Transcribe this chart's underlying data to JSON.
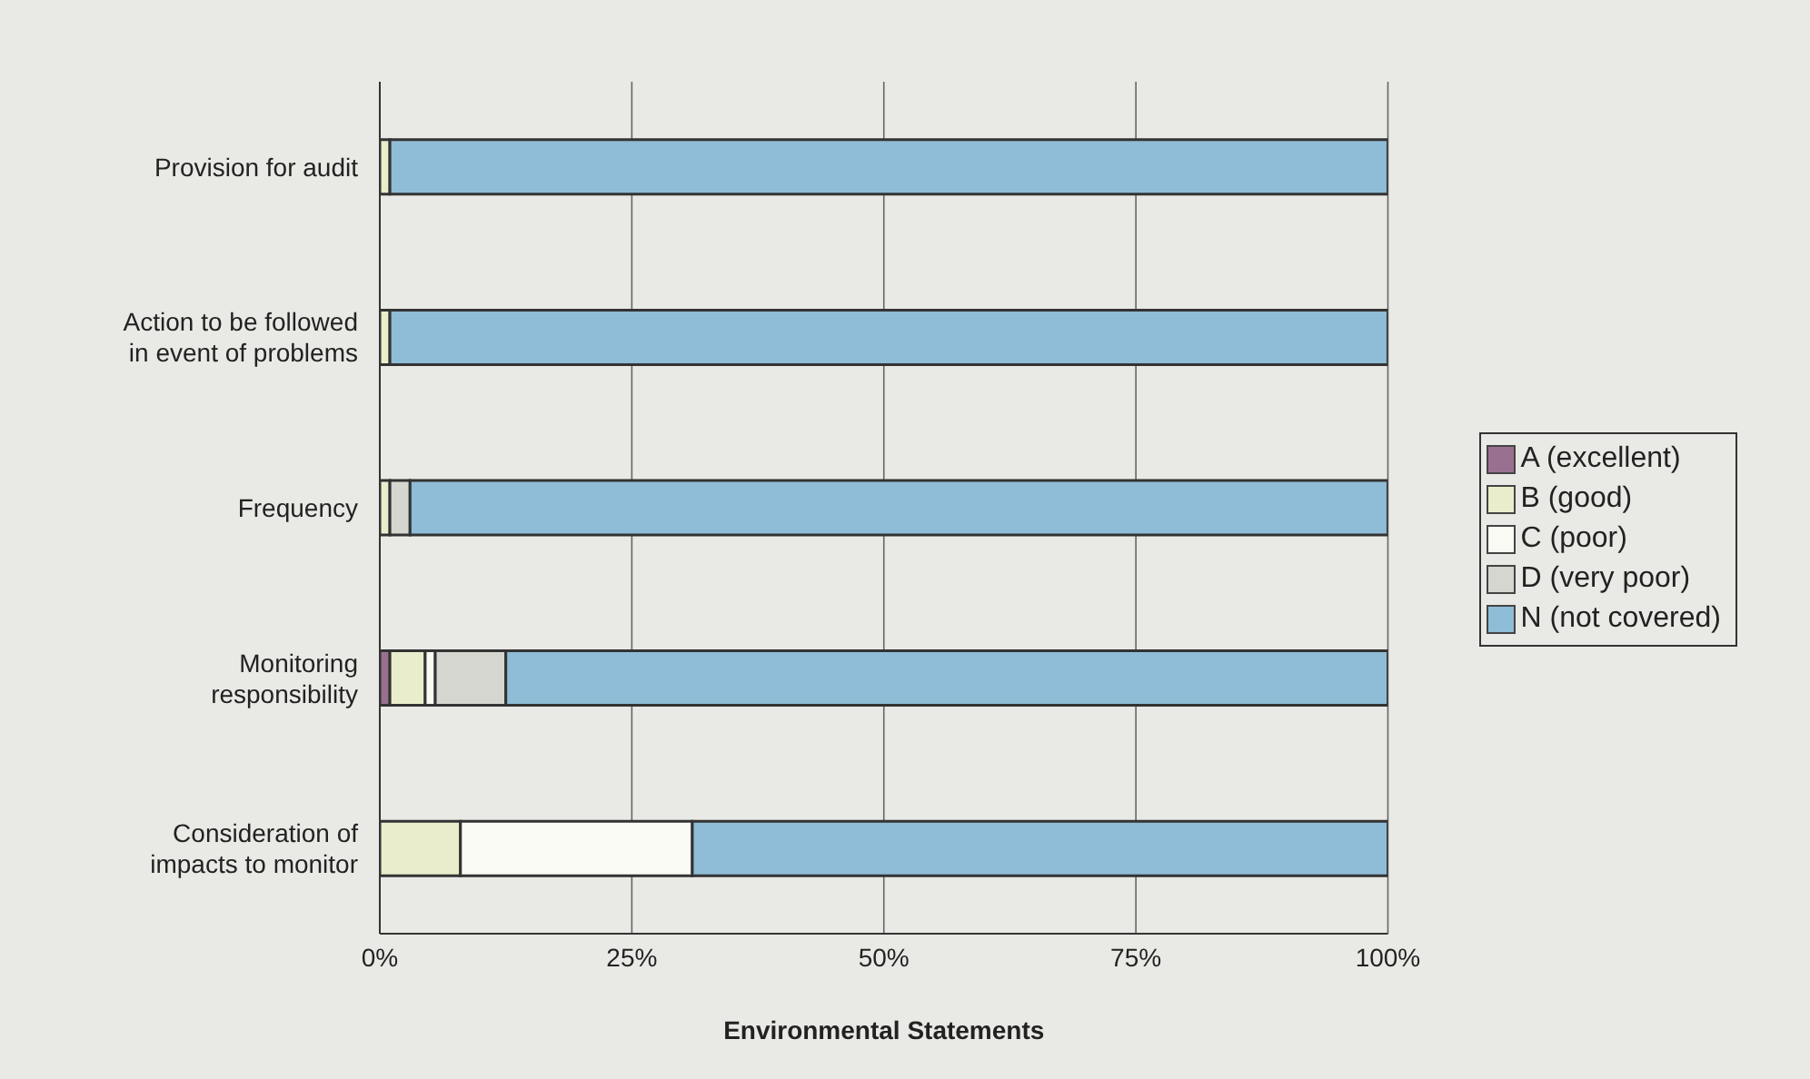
{
  "chart_data": {
    "type": "bar",
    "orientation": "horizontal",
    "stacked": true,
    "xlabel": "Environmental Statements",
    "categories": [
      "Provision for audit",
      "Action to be followed in event of problems",
      "Frequency",
      "Monitoring responsibility",
      "Consideration of impacts to monitor"
    ],
    "series": [
      {
        "name": "A (excellent)",
        "color": "#9a7090",
        "values": [
          0,
          0,
          0,
          1,
          0
        ]
      },
      {
        "name": "B (good)",
        "color": "#eaedcc",
        "values": [
          1,
          1,
          1,
          3.5,
          8
        ]
      },
      {
        "name": "C (poor)",
        "color": "#fafaf4",
        "values": [
          0,
          0,
          0,
          1,
          23
        ]
      },
      {
        "name": "D (very poor)",
        "color": "#d4d6cf",
        "values": [
          0,
          0,
          2,
          7,
          0
        ]
      },
      {
        "name": "N (not covered)",
        "color": "#8fbcd6",
        "values": [
          99,
          99,
          97,
          87.5,
          69
        ]
      }
    ],
    "xlim": [
      0,
      100
    ],
    "xticks": [
      {
        "value": 0,
        "label": "0%"
      },
      {
        "value": 25,
        "label": "25%"
      },
      {
        "value": 50,
        "label": "50%"
      },
      {
        "value": 75,
        "label": "75%"
      },
      {
        "value": 100,
        "label": "100%"
      }
    ],
    "grid": "x",
    "legend": "right"
  }
}
